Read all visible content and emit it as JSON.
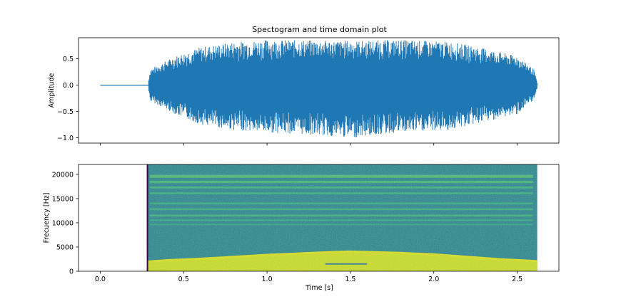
{
  "chart_data": [
    {
      "type": "line",
      "title": "Spectogram and time domain plot",
      "ylabel": "Amplitude",
      "xlim": [
        -0.13,
        2.75
      ],
      "ylim": [
        -1.1,
        0.9
      ],
      "xticks": [
        0.0,
        0.5,
        1.0,
        1.5,
        2.0,
        2.5
      ],
      "yticks": [
        0.5,
        0.0,
        -0.5,
        -1.0
      ],
      "ytick_labels": [
        "0.5",
        "0.0",
        "−0.5",
        "−1.0"
      ],
      "grid": false,
      "series": [
        {
          "color": "#1f77b4",
          "silent_interval": [
            0.0,
            0.29
          ],
          "signal_interval": [
            0.29,
            2.62
          ],
          "envelope": {
            "t": [
              0.29,
              0.3,
              0.45,
              0.6,
              0.8,
              1.0,
              1.3,
              1.5,
              1.8,
              2.1,
              2.3,
              2.5,
              2.6,
              2.62
            ],
            "upper": [
              0.1,
              0.3,
              0.55,
              0.72,
              0.82,
              0.86,
              0.85,
              0.84,
              0.86,
              0.82,
              0.7,
              0.55,
              0.3,
              0.05
            ],
            "lower": [
              -0.1,
              -0.3,
              -0.55,
              -0.75,
              -0.85,
              -0.9,
              -0.95,
              -1.0,
              -0.9,
              -0.85,
              -0.7,
              -0.55,
              -0.3,
              -0.05
            ]
          }
        }
      ]
    },
    {
      "type": "heatmap",
      "title": "",
      "xlabel": "Time [s]",
      "ylabel": "Frecuency [Hz]",
      "xlim": [
        -0.13,
        2.75
      ],
      "ylim": [
        0,
        22050
      ],
      "xticks": [
        0.0,
        0.5,
        1.0,
        1.5,
        2.0,
        2.5
      ],
      "xtick_labels": [
        "0.0",
        "0.5",
        "1.0",
        "1.5",
        "2.0",
        "2.5"
      ],
      "yticks": [
        0,
        5000,
        10000,
        15000,
        20000
      ],
      "ytick_labels": [
        "0",
        "5000",
        "10000",
        "15000",
        "20000"
      ],
      "colormap": "viridis",
      "time_range": [
        0.28,
        2.62
      ],
      "background_color": "#25858e",
      "low_band": {
        "color": "#d8e219",
        "t": [
          0.28,
          0.4,
          0.6,
          0.8,
          1.0,
          1.2,
          1.4,
          1.5,
          1.6,
          1.8,
          2.0,
          2.2,
          2.4,
          2.62
        ],
        "top": [
          2200,
          2500,
          2800,
          3200,
          3600,
          3900,
          4200,
          4300,
          4200,
          4000,
          3700,
          3200,
          2700,
          2300
        ]
      },
      "bands": [
        {
          "range": [
            19300,
            19900
          ],
          "color": "#52c569"
        },
        {
          "range": [
            18200,
            18700
          ],
          "color": "#44bf70"
        },
        {
          "range": [
            17100,
            17500
          ],
          "color": "#3dbc74"
        },
        {
          "range": [
            15900,
            16300
          ],
          "color": "#38b977"
        },
        {
          "range": [
            13800,
            14200
          ],
          "color": "#2fb47c"
        },
        {
          "range": [
            12600,
            13000
          ],
          "color": "#35b779"
        },
        {
          "range": [
            11300,
            11700
          ],
          "color": "#3dbc74"
        },
        {
          "range": [
            10400,
            10700
          ],
          "color": "#2fb47c"
        },
        {
          "range": [
            9500,
            9800
          ],
          "color": "#29af7f"
        }
      ],
      "lines": [
        {
          "freq": 1500,
          "t": [
            1.35,
            1.6
          ],
          "color": "#2a788e"
        }
      ]
    }
  ]
}
